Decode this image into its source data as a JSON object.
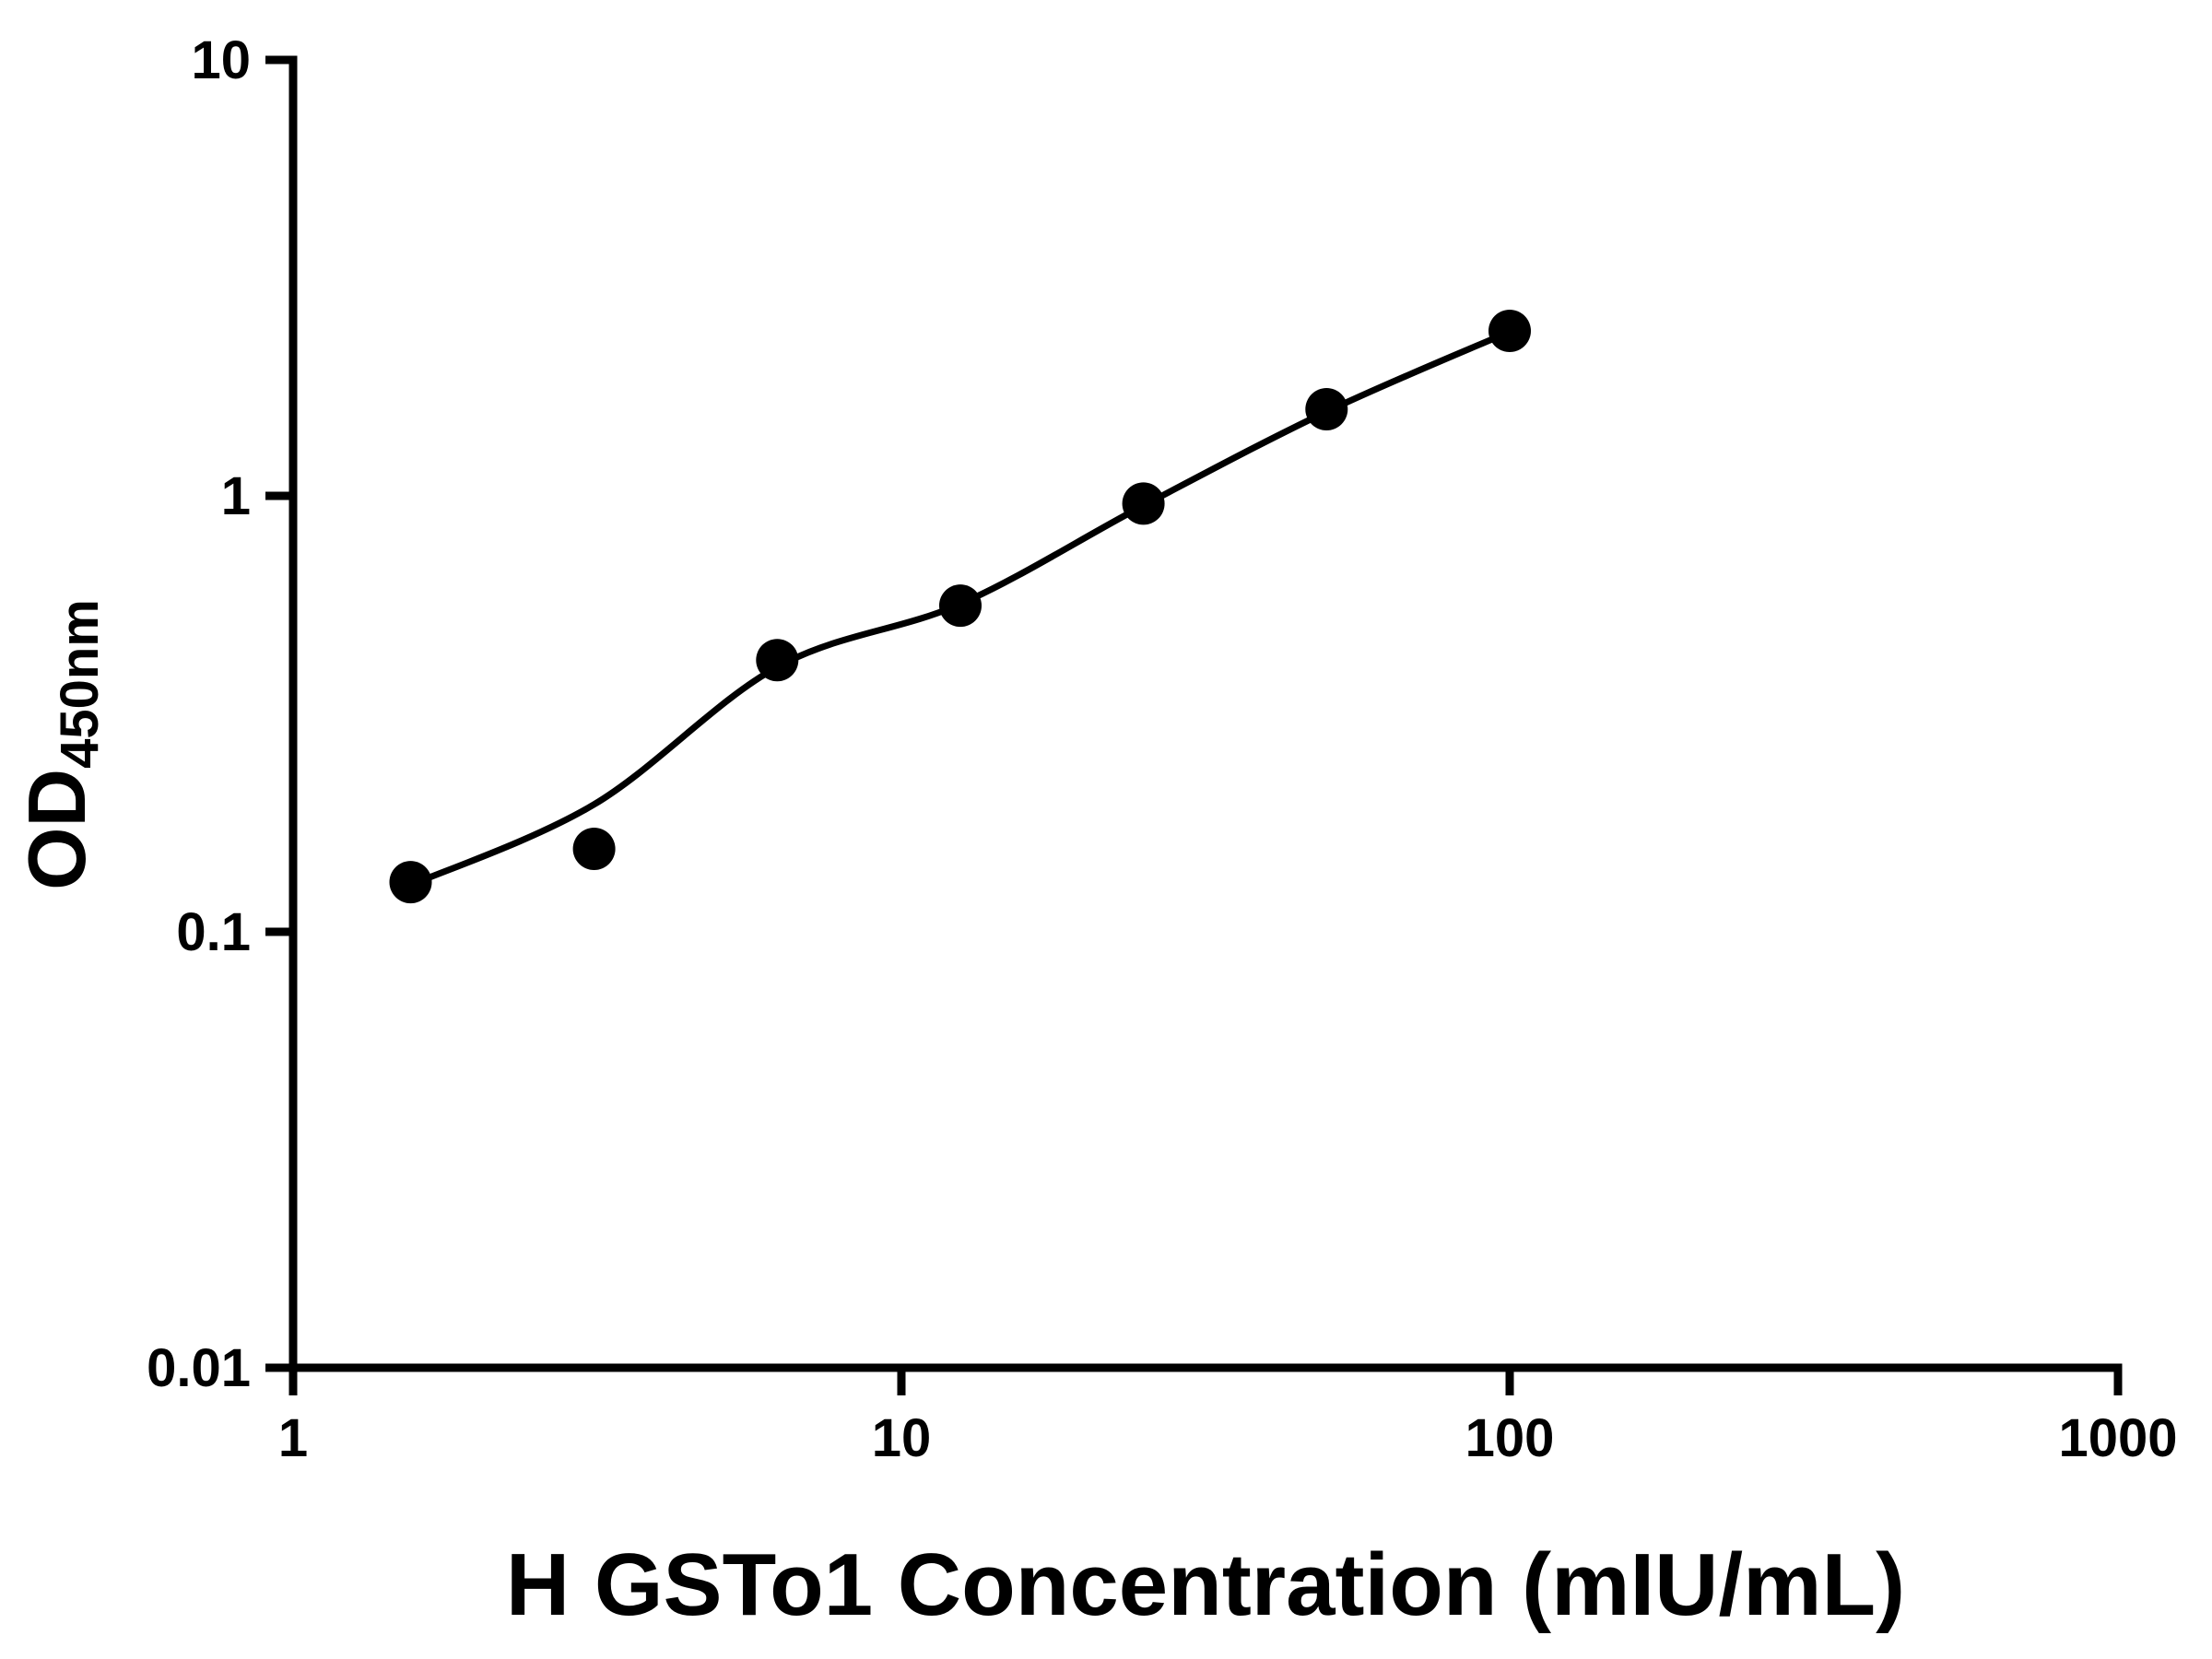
{
  "chart_data": {
    "type": "scatter",
    "title": "",
    "xlabel": "H GSTo1 Concentration (mIU/mL)",
    "ylabel_main": "OD",
    "ylabel_sub": "450nm",
    "x_scale": "log",
    "y_scale": "log",
    "xlim": [
      1,
      1000
    ],
    "ylim": [
      0.01,
      10
    ],
    "x_ticks": [
      1,
      10,
      100,
      1000
    ],
    "x_tick_labels": [
      "1",
      "10",
      "100",
      "1000"
    ],
    "y_ticks": [
      0.01,
      0.1,
      1,
      10
    ],
    "y_tick_labels": [
      "0.01",
      "0.1",
      "1",
      "10"
    ],
    "points": [
      {
        "x": 1.56,
        "y": 0.13
      },
      {
        "x": 3.125,
        "y": 0.155
      },
      {
        "x": 6.25,
        "y": 0.42
      },
      {
        "x": 12.5,
        "y": 0.56
      },
      {
        "x": 25,
        "y": 0.96
      },
      {
        "x": 50,
        "y": 1.58
      },
      {
        "x": 100,
        "y": 2.39
      }
    ],
    "fit_curve": [
      {
        "x": 1.56,
        "y": 0.128
      },
      {
        "x": 3.125,
        "y": 0.196
      },
      {
        "x": 6.25,
        "y": 0.405
      },
      {
        "x": 12.5,
        "y": 0.565
      },
      {
        "x": 25,
        "y": 0.95
      },
      {
        "x": 50,
        "y": 1.56
      },
      {
        "x": 100,
        "y": 2.38
      }
    ],
    "marker_color": "#000000",
    "line_color": "#000000",
    "axis_color": "#000000",
    "background": "#ffffff",
    "grid": false,
    "legend": "none"
  }
}
